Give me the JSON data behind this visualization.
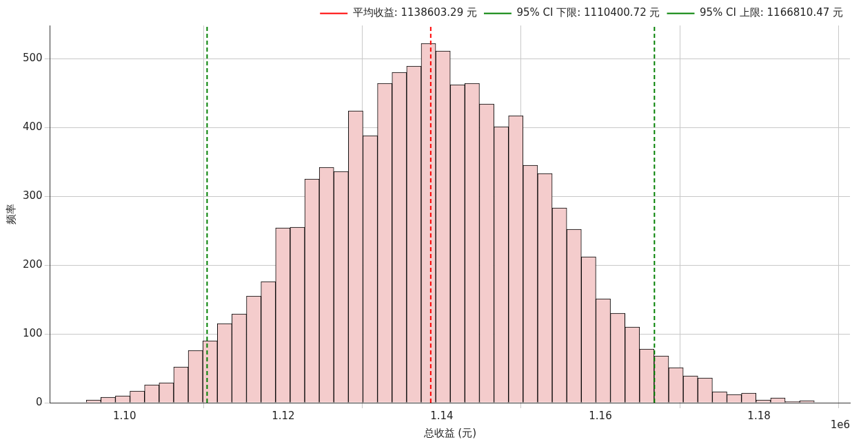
{
  "chart_data": {
    "type": "histogram",
    "xlabel": "总收益 (元)",
    "ylabel": "频率",
    "bins": [
      1.09517,
      1.097006,
      1.098842,
      1.100678,
      1.102514,
      1.10435,
      1.106186,
      1.108022,
      1.109858,
      1.111694,
      1.11353,
      1.115366,
      1.117202,
      1.119038,
      1.120874,
      1.12271,
      1.124546,
      1.126382,
      1.128218,
      1.130054,
      1.13189,
      1.133726,
      1.135562,
      1.137398,
      1.139234,
      1.14107,
      1.142906,
      1.144742,
      1.146578,
      1.148414,
      1.15025,
      1.152086,
      1.153922,
      1.155758,
      1.157594,
      1.15943,
      1.161266,
      1.163102,
      1.164938,
      1.166774,
      1.16861,
      1.170446,
      1.172282,
      1.174118,
      1.175954,
      1.17779,
      1.179626,
      1.181462,
      1.183298,
      1.185134,
      1.18697
    ],
    "values": [
      4,
      8,
      10,
      17,
      26,
      29,
      52,
      76,
      90,
      115,
      129,
      155,
      176,
      254,
      255,
      325,
      342,
      336,
      424,
      388,
      464,
      480,
      489,
      522,
      511,
      462,
      464,
      434,
      401,
      417,
      345,
      333,
      283,
      252,
      212,
      151,
      130,
      110,
      78,
      68,
      51,
      39,
      36,
      16,
      12,
      14,
      4,
      7,
      2,
      3
    ],
    "color": "#f4cccc",
    "xlim": [
      1.0906,
      1.19147
    ],
    "xticks": [
      {
        "value": 1.1,
        "label": "1.10"
      },
      {
        "value": 1.12,
        "label": "1.12"
      },
      {
        "value": 1.14,
        "label": "1.14"
      },
      {
        "value": 1.16,
        "label": "1.16"
      },
      {
        "value": 1.18,
        "label": "1.18"
      }
    ],
    "ylim": [
      0,
      548
    ],
    "yticks": [
      0,
      100,
      200,
      300,
      400,
      500
    ],
    "ref_lines": [
      {
        "axis": "x",
        "value": 1.13860329,
        "label": "平均收益: 1138603.29 元",
        "color": "#ff0000",
        "line_style": "dashed"
      },
      {
        "axis": "x",
        "value": 1.11040072,
        "label": "95% CI 下限: 1110400.72 元",
        "color": "#008000",
        "line_style": "dashed"
      },
      {
        "axis": "x",
        "value": 1.16681047,
        "label": "95% CI 上限: 1166810.47 元",
        "color": "#008000",
        "line_style": "dashed"
      }
    ],
    "annotations": [
      "1e6"
    ],
    "grid": true,
    "legend": "top right"
  }
}
